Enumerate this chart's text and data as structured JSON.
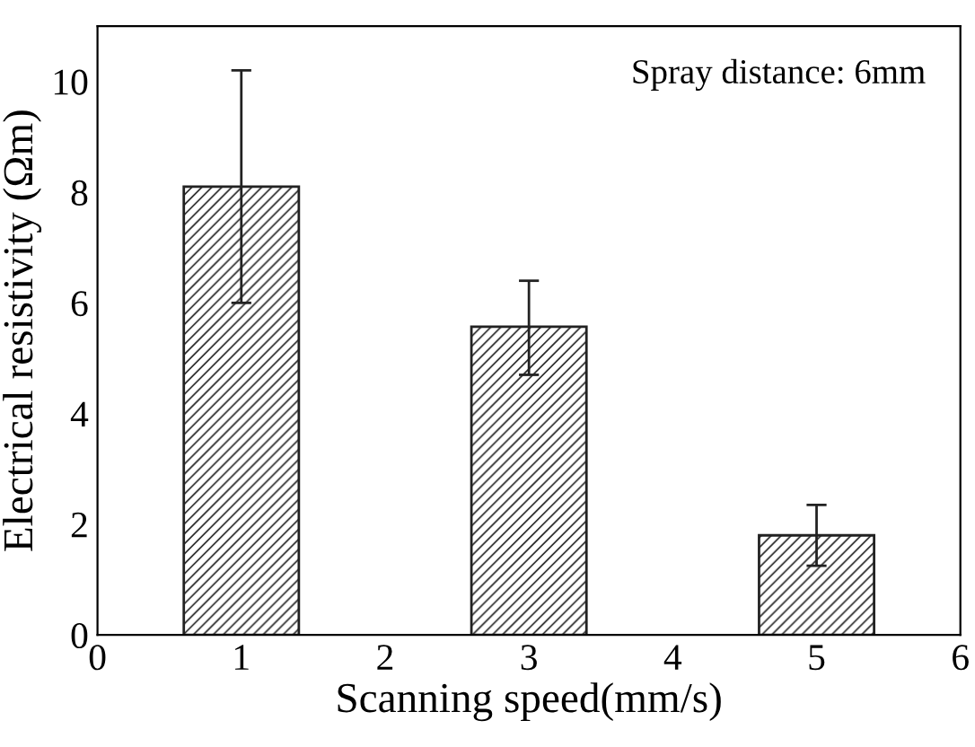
{
  "chart_data": {
    "type": "bar",
    "xlabel": "Scanning speed(mm/s)",
    "ylabel": "Electrical resistivity (Ωm)",
    "x": [
      1,
      3,
      5
    ],
    "values": [
      8.1,
      5.57,
      1.8
    ],
    "errors": [
      [
        6.0,
        10.2
      ],
      [
        4.7,
        6.4
      ],
      [
        1.25,
        2.35
      ]
    ],
    "color": "#222222",
    "xlim": [
      0,
      6
    ],
    "xticks": [
      0,
      1,
      2,
      3,
      4,
      5,
      6
    ],
    "ylim": [
      0,
      11
    ],
    "yticks": [
      0,
      2,
      4,
      6,
      8,
      10
    ],
    "annotations": [
      "Spray distance: 6mm"
    ],
    "grid": false,
    "legend": false
  }
}
